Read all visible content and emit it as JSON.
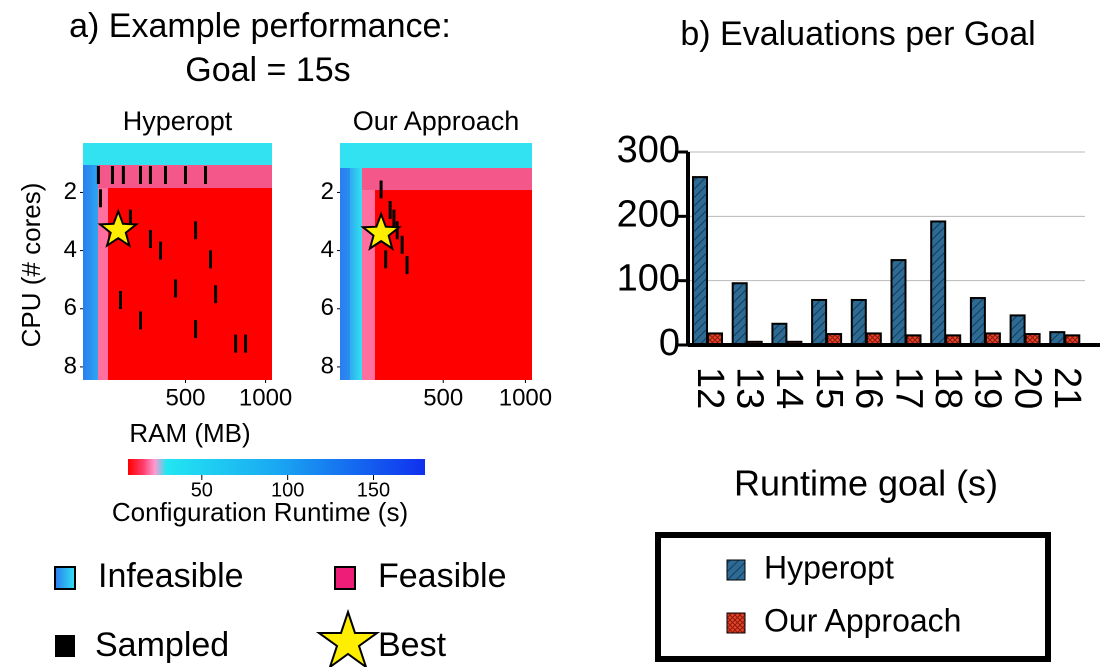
{
  "panel_a": {
    "title": "a) Example performance:",
    "subtitle": "Goal = 15s",
    "ylabel": "CPU (# cores)",
    "xlabel": "RAM (MB)",
    "colorbar": {
      "label": "Configuration Runtime (s)",
      "lim": [
        7,
        180
      ],
      "ticks": [
        50,
        100,
        150
      ]
    },
    "legend": [
      "Infeasible",
      "Feasible",
      "Sampled",
      "Best"
    ]
  },
  "chart_data": [
    {
      "type": "heatmap",
      "title": "Hyperopt",
      "xlim": [
        -140,
        1040
      ],
      "xticks": [
        500,
        1000
      ],
      "ylim": [
        0.3,
        8.45
      ],
      "yticks": [
        2,
        4,
        6,
        8
      ],
      "samples": {
        "x": [
          -44,
          44,
          112,
          219,
          281,
          375,
          500,
          625,
          -31,
          156,
          281,
          344,
          438,
          688,
          563,
          813,
          875,
          219,
          94,
          656,
          563
        ],
        "y": [
          1.4,
          1.4,
          1.4,
          1.4,
          1.4,
          1.4,
          1.4,
          1.4,
          2.2,
          2.9,
          3.6,
          4.0,
          5.3,
          5.5,
          6.7,
          7.2,
          7.2,
          6.4,
          5.7,
          4.3,
          3.3
        ]
      },
      "best": {
        "x": 80,
        "y": 3.3
      }
    },
    {
      "type": "heatmap",
      "title": "Our Approach",
      "xlim": [
        -128,
        1040
      ],
      "xticks": [
        500,
        1000
      ],
      "ylim": [
        0.3,
        8.45
      ],
      "yticks": [
        2,
        4,
        6,
        8
      ],
      "samples": {
        "x": [
          122,
          177,
          220,
          250,
          280,
          200,
          150
        ],
        "y": [
          1.9,
          2.6,
          3.3,
          3.8,
          4.5,
          2.9,
          4.3
        ]
      },
      "best": {
        "x": 122,
        "y": 3.4
      }
    },
    {
      "type": "bar",
      "title": "b) Evaluations per Goal",
      "xlabel": "Runtime goal (s)",
      "categories": [
        "12",
        "13",
        "14",
        "15",
        "16",
        "17",
        "18",
        "19",
        "20",
        "21"
      ],
      "series": [
        {
          "name": "Hyperopt",
          "color": "#2e6b94",
          "values": [
            261,
            96,
            33,
            70,
            70,
            132,
            192,
            73,
            46,
            20
          ]
        },
        {
          "name": "Our Approach",
          "color": "#e8432a",
          "values": [
            18,
            5,
            5,
            17,
            18,
            15,
            15,
            18,
            17,
            15
          ]
        }
      ],
      "ylim": [
        0,
        300
      ],
      "yticks": [
        0,
        100,
        200,
        300
      ],
      "grid": true
    }
  ]
}
